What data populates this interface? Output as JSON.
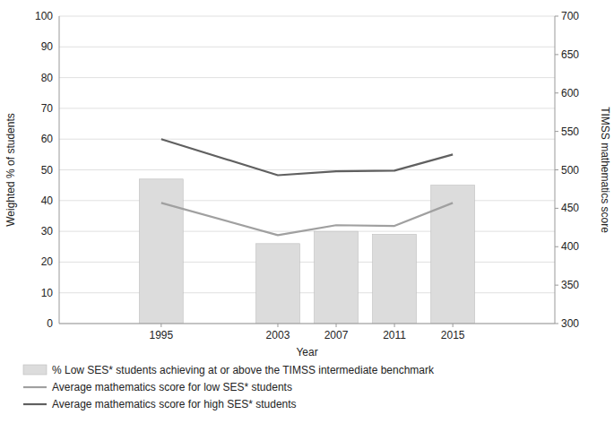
{
  "chart_data": {
    "type": "bar",
    "x": [
      1995,
      2003,
      2007,
      2011,
      2015
    ],
    "xlim": [
      1988,
      2022
    ],
    "xticks": [
      1995,
      2003,
      2007,
      2011,
      2015
    ],
    "xlabel": "Year",
    "ylabel": "Weighted % of students",
    "y2label": "TIMSS mathematics score",
    "ylim": [
      0,
      100
    ],
    "yticks": [
      0,
      10,
      20,
      30,
      40,
      50,
      60,
      70,
      80,
      90,
      100
    ],
    "y2lim": [
      300,
      700
    ],
    "y2ticks": [
      300,
      350,
      400,
      450,
      500,
      550,
      600,
      650,
      700
    ],
    "grid": true,
    "legend": "bottom",
    "series": [
      {
        "name": "% Low SES* students achieving at or above the TIMSS intermediate benchmark",
        "type": "bar",
        "color": "#dcdcdc",
        "values": [
          47,
          26,
          30,
          29,
          45
        ]
      },
      {
        "name": "Average mathematics score for low SES* students",
        "type": "line",
        "axis": "y2",
        "color": "#a0a0a0",
        "values": [
          457,
          415,
          428,
          427,
          457
        ]
      },
      {
        "name": "Average mathematics score for high SES* students",
        "type": "line",
        "axis": "y2",
        "color": "#606060",
        "values": [
          540,
          493,
          498,
          499,
          520
        ]
      }
    ]
  }
}
